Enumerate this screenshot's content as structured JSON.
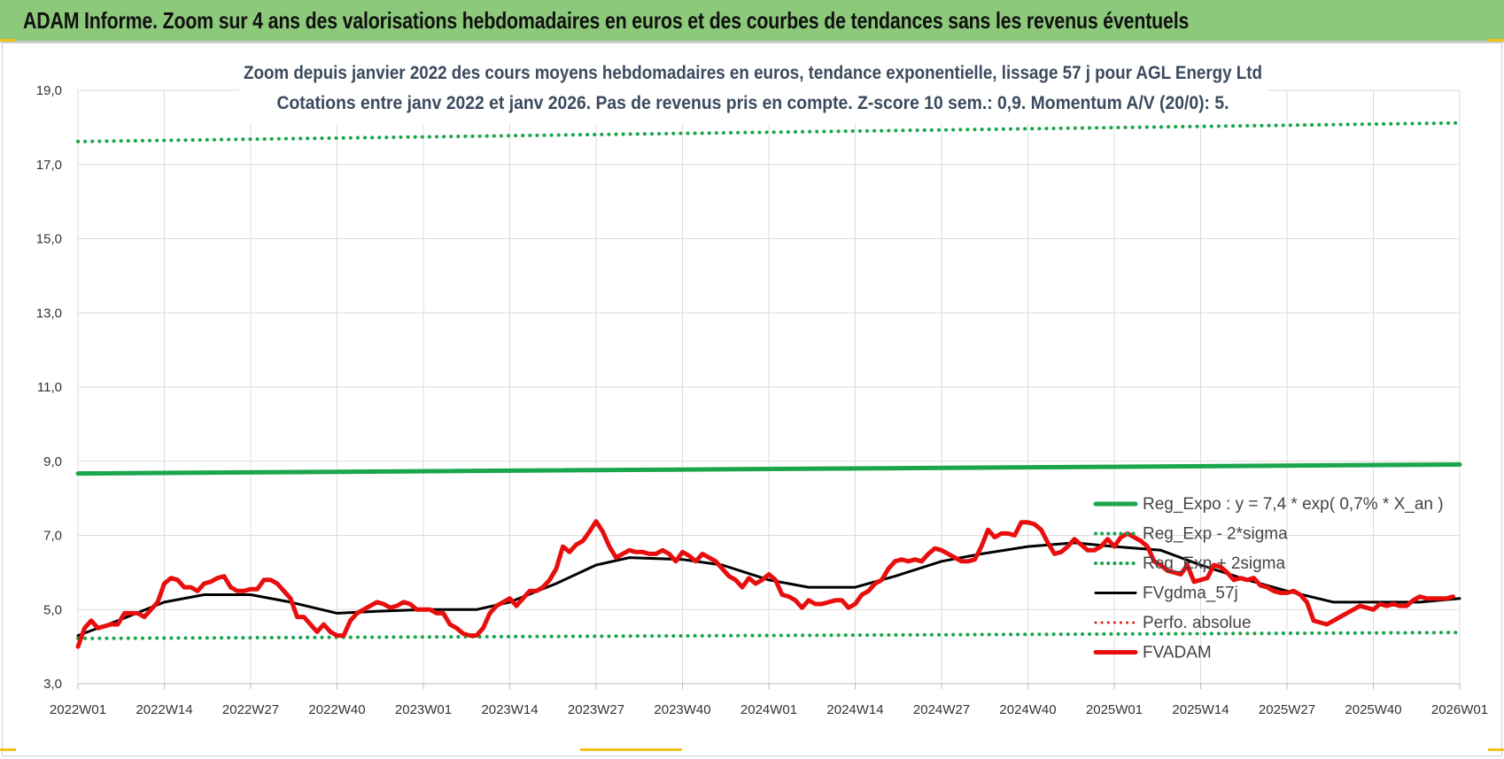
{
  "header": {
    "title": "ADAM Informe. Zoom sur 4 ans des valorisations hebdomadaires en euros et des courbes de tendances sans les revenus éventuels"
  },
  "chart_data": {
    "type": "line",
    "title": "Zoom depuis janvier 2022 des cours moyens hebdomadaires en euros, tendance exponentielle, lissage 57 j pour AGL Energy Ltd",
    "subtitle": "Cotations entre janv 2022 et janv 2026. Pas de revenus pris en compte. Z-score 10 sem.: 0,9. Momentum A/V (20/0): 5.",
    "xlabel": "",
    "ylabel": "",
    "ylim": [
      3,
      19
    ],
    "yticks": [
      "3,0",
      "5,0",
      "7,0",
      "9,0",
      "11,0",
      "13,0",
      "15,0",
      "17,0",
      "19,0"
    ],
    "yticks_values": [
      3,
      5,
      7,
      9,
      11,
      13,
      15,
      17,
      19
    ],
    "xlim": [
      0,
      208
    ],
    "xticks": [
      "2022W01",
      "2022W14",
      "2022W27",
      "2022W40",
      "2023W01",
      "2023W14",
      "2023W27",
      "2023W40",
      "2024W01",
      "2024W14",
      "2024W27",
      "2024W40",
      "2025W01",
      "2025W14",
      "2025W27",
      "2025W40",
      "2026W01"
    ],
    "grid": true,
    "legend_position": "right",
    "series": [
      {
        "name": "Reg_Expo : y = 7,4 * exp( 0,7% *  X_an )",
        "color": "#1aa64a",
        "style": "solid",
        "width": 5,
        "points": [
          [
            0,
            8.67
          ],
          [
            208,
            8.91
          ]
        ]
      },
      {
        "name": "Reg_Exp - 2*sigma",
        "color": "#1aa64a",
        "style": "dotted",
        "width": 4,
        "points": [
          [
            0,
            4.22
          ],
          [
            208,
            4.38
          ]
        ]
      },
      {
        "name": "Reg_Exp + 2sigma",
        "color": "#1aa64a",
        "style": "dotted",
        "width": 4,
        "points": [
          [
            0,
            17.62
          ],
          [
            208,
            18.12
          ]
        ]
      },
      {
        "name": "FVgdma_57j",
        "color": "#000000",
        "style": "solid",
        "width": 3,
        "points": [
          [
            0,
            4.3
          ],
          [
            6,
            4.7
          ],
          [
            13,
            5.2
          ],
          [
            19,
            5.4
          ],
          [
            26,
            5.4
          ],
          [
            32,
            5.2
          ],
          [
            39,
            4.9
          ],
          [
            45,
            4.95
          ],
          [
            52,
            5.0
          ],
          [
            60,
            5.0
          ],
          [
            65,
            5.2
          ],
          [
            72,
            5.7
          ],
          [
            78,
            6.2
          ],
          [
            83,
            6.4
          ],
          [
            91,
            6.35
          ],
          [
            97,
            6.2
          ],
          [
            104,
            5.8
          ],
          [
            110,
            5.6
          ],
          [
            117,
            5.6
          ],
          [
            123,
            5.9
          ],
          [
            130,
            6.3
          ],
          [
            136,
            6.5
          ],
          [
            143,
            6.7
          ],
          [
            150,
            6.8
          ],
          [
            156,
            6.7
          ],
          [
            163,
            6.6
          ],
          [
            169,
            6.2
          ],
          [
            176,
            5.8
          ],
          [
            182,
            5.5
          ],
          [
            189,
            5.2
          ],
          [
            195,
            5.2
          ],
          [
            202,
            5.2
          ],
          [
            208,
            5.3
          ]
        ]
      },
      {
        "name": "Perfo. absolue",
        "color": "#e41e1e",
        "style": "dotted",
        "width": 3,
        "points": []
      },
      {
        "name": "FVADAM",
        "color": "#e80e0e",
        "style": "solid",
        "width": 5,
        "points": [
          [
            0,
            4.0
          ],
          [
            1,
            4.5
          ],
          [
            2,
            4.7
          ],
          [
            3,
            4.5
          ],
          [
            5,
            4.6
          ],
          [
            6,
            4.6
          ],
          [
            7,
            4.9
          ],
          [
            9,
            4.9
          ],
          [
            10,
            4.8
          ],
          [
            11,
            5.0
          ],
          [
            12,
            5.2
          ],
          [
            13,
            5.7
          ],
          [
            14,
            5.85
          ],
          [
            15,
            5.8
          ],
          [
            16,
            5.6
          ],
          [
            17,
            5.6
          ],
          [
            18,
            5.5
          ],
          [
            19,
            5.7
          ],
          [
            20,
            5.75
          ],
          [
            21,
            5.85
          ],
          [
            22,
            5.9
          ],
          [
            23,
            5.6
          ],
          [
            24,
            5.5
          ],
          [
            25,
            5.5
          ],
          [
            26,
            5.55
          ],
          [
            27,
            5.55
          ],
          [
            28,
            5.8
          ],
          [
            29,
            5.8
          ],
          [
            30,
            5.7
          ],
          [
            31,
            5.5
          ],
          [
            32,
            5.3
          ],
          [
            33,
            4.8
          ],
          [
            34,
            4.8
          ],
          [
            35,
            4.6
          ],
          [
            36,
            4.4
          ],
          [
            37,
            4.6
          ],
          [
            38,
            4.4
          ],
          [
            39,
            4.3
          ],
          [
            40,
            4.3
          ],
          [
            41,
            4.7
          ],
          [
            42,
            4.9
          ],
          [
            43,
            5.0
          ],
          [
            44,
            5.1
          ],
          [
            45,
            5.2
          ],
          [
            46,
            5.15
          ],
          [
            47,
            5.05
          ],
          [
            48,
            5.1
          ],
          [
            49,
            5.2
          ],
          [
            50,
            5.15
          ],
          [
            51,
            5.0
          ],
          [
            52,
            5.0
          ],
          [
            53,
            5.0
          ],
          [
            54,
            4.9
          ],
          [
            55,
            4.9
          ],
          [
            56,
            4.6
          ],
          [
            57,
            4.5
          ],
          [
            58,
            4.35
          ],
          [
            59,
            4.3
          ],
          [
            60,
            4.3
          ],
          [
            61,
            4.5
          ],
          [
            62,
            4.9
          ],
          [
            63,
            5.1
          ],
          [
            64,
            5.2
          ],
          [
            65,
            5.3
          ],
          [
            66,
            5.1
          ],
          [
            67,
            5.3
          ],
          [
            68,
            5.5
          ],
          [
            69,
            5.5
          ],
          [
            70,
            5.6
          ],
          [
            71,
            5.8
          ],
          [
            72,
            6.1
          ],
          [
            73,
            6.7
          ],
          [
            74,
            6.55
          ],
          [
            75,
            6.75
          ],
          [
            76,
            6.85
          ],
          [
            77,
            7.1
          ],
          [
            78,
            7.38
          ],
          [
            79,
            7.1
          ],
          [
            80,
            6.7
          ],
          [
            81,
            6.4
          ],
          [
            82,
            6.5
          ],
          [
            83,
            6.6
          ],
          [
            84,
            6.55
          ],
          [
            85,
            6.55
          ],
          [
            86,
            6.5
          ],
          [
            87,
            6.5
          ],
          [
            88,
            6.6
          ],
          [
            89,
            6.5
          ],
          [
            90,
            6.3
          ],
          [
            91,
            6.55
          ],
          [
            92,
            6.45
          ],
          [
            93,
            6.3
          ],
          [
            94,
            6.5
          ],
          [
            95,
            6.4
          ],
          [
            96,
            6.3
          ],
          [
            97,
            6.1
          ],
          [
            98,
            5.9
          ],
          [
            99,
            5.8
          ],
          [
            100,
            5.6
          ],
          [
            101,
            5.85
          ],
          [
            102,
            5.7
          ],
          [
            103,
            5.8
          ],
          [
            104,
            5.95
          ],
          [
            105,
            5.8
          ],
          [
            106,
            5.4
          ],
          [
            107,
            5.35
          ],
          [
            108,
            5.25
          ],
          [
            109,
            5.05
          ],
          [
            110,
            5.25
          ],
          [
            111,
            5.15
          ],
          [
            112,
            5.15
          ],
          [
            113,
            5.2
          ],
          [
            114,
            5.25
          ],
          [
            115,
            5.25
          ],
          [
            116,
            5.05
          ],
          [
            117,
            5.15
          ],
          [
            118,
            5.4
          ],
          [
            119,
            5.5
          ],
          [
            120,
            5.7
          ],
          [
            121,
            5.8
          ],
          [
            122,
            6.1
          ],
          [
            123,
            6.3
          ],
          [
            124,
            6.35
          ],
          [
            125,
            6.3
          ],
          [
            126,
            6.35
          ],
          [
            127,
            6.3
          ],
          [
            128,
            6.5
          ],
          [
            129,
            6.65
          ],
          [
            130,
            6.6
          ],
          [
            131,
            6.5
          ],
          [
            132,
            6.4
          ],
          [
            133,
            6.3
          ],
          [
            134,
            6.3
          ],
          [
            135,
            6.35
          ],
          [
            136,
            6.7
          ],
          [
            137,
            7.15
          ],
          [
            138,
            6.95
          ],
          [
            139,
            7.05
          ],
          [
            140,
            7.05
          ],
          [
            141,
            7.0
          ],
          [
            142,
            7.35
          ],
          [
            143,
            7.35
          ],
          [
            144,
            7.3
          ],
          [
            145,
            7.15
          ],
          [
            146,
            6.8
          ],
          [
            147,
            6.5
          ],
          [
            148,
            6.55
          ],
          [
            149,
            6.7
          ],
          [
            150,
            6.9
          ],
          [
            151,
            6.75
          ],
          [
            152,
            6.6
          ],
          [
            153,
            6.6
          ],
          [
            154,
            6.7
          ],
          [
            155,
            6.9
          ],
          [
            156,
            6.7
          ],
          [
            157,
            6.95
          ],
          [
            158,
            7.05
          ],
          [
            159,
            6.95
          ],
          [
            160,
            6.85
          ],
          [
            161,
            6.7
          ],
          [
            162,
            6.3
          ],
          [
            163,
            6.2
          ],
          [
            164,
            6.05
          ],
          [
            165,
            6.0
          ],
          [
            166,
            5.95
          ],
          [
            167,
            6.2
          ],
          [
            168,
            5.75
          ],
          [
            169,
            5.8
          ],
          [
            170,
            5.85
          ],
          [
            171,
            6.2
          ],
          [
            172,
            6.15
          ],
          [
            173,
            6.0
          ],
          [
            174,
            5.8
          ],
          [
            175,
            5.85
          ],
          [
            176,
            5.8
          ],
          [
            177,
            5.85
          ],
          [
            178,
            5.65
          ],
          [
            179,
            5.6
          ],
          [
            180,
            5.5
          ],
          [
            181,
            5.45
          ],
          [
            182,
            5.45
          ],
          [
            183,
            5.5
          ],
          [
            184,
            5.4
          ],
          [
            185,
            5.2
          ],
          [
            186,
            4.7
          ],
          [
            187,
            4.65
          ],
          [
            188,
            4.6
          ],
          [
            189,
            4.7
          ],
          [
            190,
            4.8
          ],
          [
            191,
            4.9
          ],
          [
            192,
            5.0
          ],
          [
            193,
            5.1
          ],
          [
            194,
            5.05
          ],
          [
            195,
            5.0
          ],
          [
            196,
            5.15
          ],
          [
            197,
            5.1
          ],
          [
            198,
            5.15
          ],
          [
            199,
            5.1
          ],
          [
            200,
            5.1
          ],
          [
            201,
            5.25
          ],
          [
            202,
            5.35
          ],
          [
            203,
            5.3
          ],
          [
            204,
            5.3
          ],
          [
            205,
            5.3
          ],
          [
            206,
            5.3
          ],
          [
            207,
            5.35
          ]
        ]
      }
    ]
  }
}
